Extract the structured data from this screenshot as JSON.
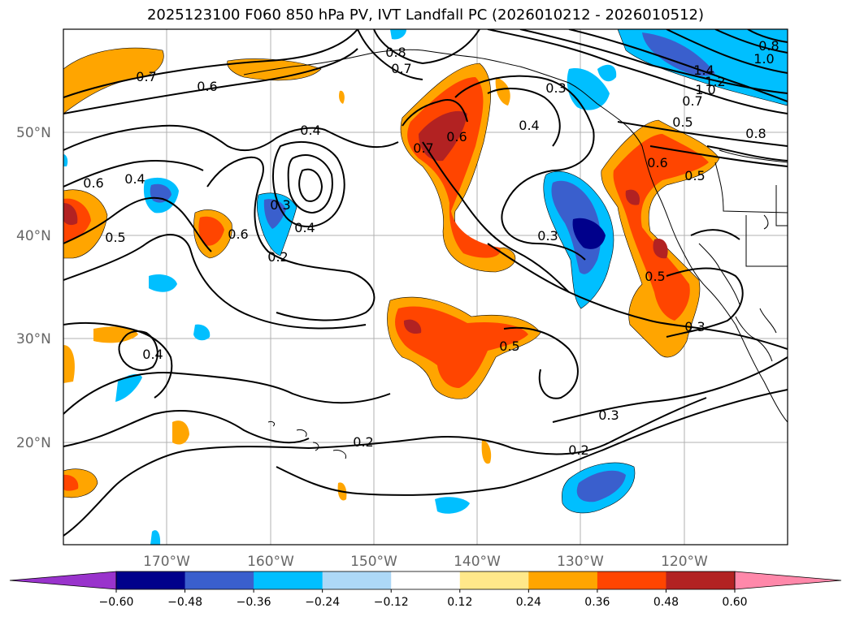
{
  "title": "2025123100 F060 850 hPa PV, IVT Landfall PC (2026010212 - 2026010512)",
  "map": {
    "lat_labels": [
      "50°N",
      "40°N",
      "30°N",
      "20°N"
    ],
    "lon_labels": [
      "170°W",
      "160°W",
      "150°W",
      "140°W",
      "130°W",
      "120°W"
    ],
    "contour_labels": [
      "0.7",
      "0.6",
      "0.8",
      "0.7",
      "1.4",
      "1.2",
      "1.0",
      "0.8",
      "1.0",
      "0.7",
      "0.5",
      "0.8",
      "0.4",
      "0.4",
      "0.4",
      "0.7",
      "0.6",
      "0.6",
      "0.5",
      "0.6",
      "0.5",
      "0.3",
      "0.4",
      "0.3",
      "0.2",
      "0.5",
      "0.6",
      "0.3",
      "0.4",
      "0.5",
      "0.3",
      "0.2",
      "0.2",
      "0.3"
    ]
  },
  "colorbar": {
    "ticks": [
      "−0.60",
      "−0.48",
      "−0.36",
      "−0.24",
      "−0.12",
      "0.12",
      "0.24",
      "0.36",
      "0.48",
      "0.60"
    ],
    "colors": [
      "#9933cc",
      "#00008b",
      "#3a5fcd",
      "#00bfff",
      "#add8f7",
      "#ffffff",
      "#ffe88a",
      "#ffa500",
      "#ff4500",
      "#b22222",
      "#ff88aa"
    ]
  }
}
